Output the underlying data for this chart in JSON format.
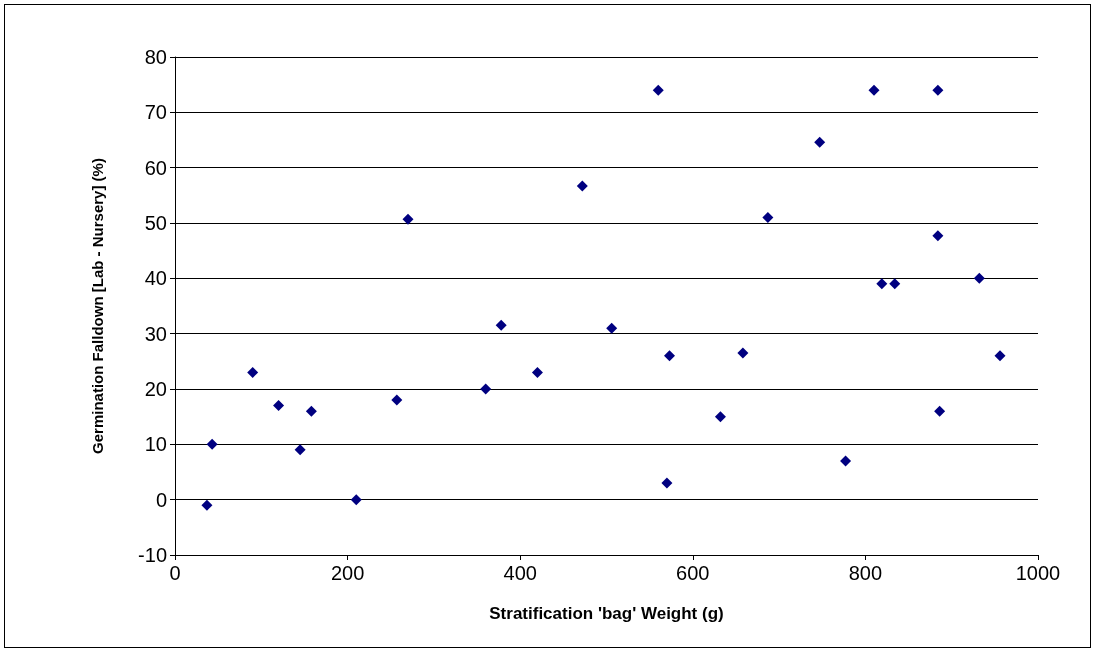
{
  "chart_data": {
    "type": "scatter",
    "xlabel": "Stratification 'bag' Weight (g)",
    "ylabel": "Germination Falldown [Lab - Nursery] (%)",
    "x": [
      37,
      43,
      90,
      120,
      145,
      158,
      210,
      257,
      270,
      360,
      378,
      420,
      472,
      506,
      560,
      570,
      573,
      632,
      658,
      687,
      747,
      777,
      810,
      819,
      834,
      884,
      884,
      886,
      932,
      956
    ],
    "series": [
      {
        "color": "#000080",
        "values": [
          -1,
          10,
          23,
          17,
          9,
          16,
          0,
          18,
          50.7,
          20,
          31.5,
          23,
          56.7,
          31,
          74,
          3,
          26,
          15,
          26.5,
          51,
          64.6,
          7,
          74,
          39,
          39,
          74,
          47.7,
          16,
          40,
          26
        ]
      }
    ],
    "xlim": [
      0,
      1000
    ],
    "xticks": [
      0,
      200,
      400,
      600,
      800,
      1000
    ],
    "ylim": [
      -10,
      80
    ],
    "yticks": [
      -10,
      0,
      10,
      20,
      30,
      40,
      50,
      60,
      70,
      80
    ],
    "grid": "y",
    "marker": "diamond"
  }
}
